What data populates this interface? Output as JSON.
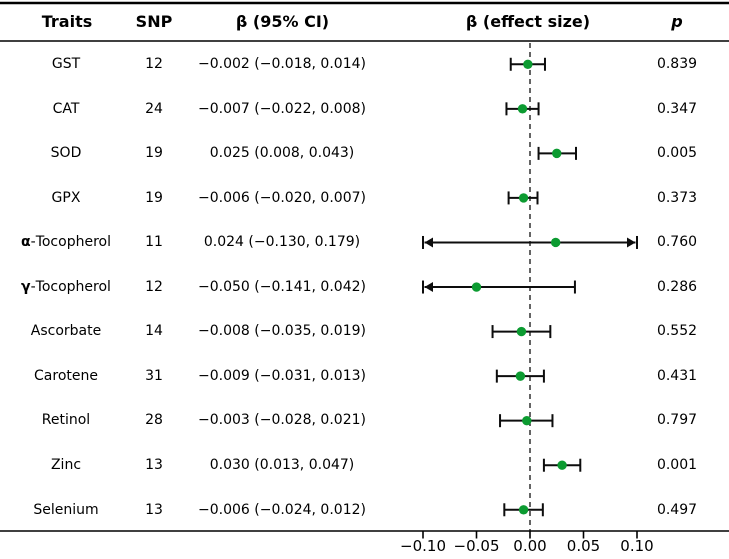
{
  "figure": {
    "headers": {
      "traits": "Traits",
      "snp": "SNP",
      "beta_ci": "β (95% CI)",
      "effect": "β (effect size)",
      "p": "p"
    },
    "colors": {
      "marker": "#0c9b31",
      "line": "#0d0d0d",
      "dashed_line": "#222222",
      "rule": "#000000"
    }
  },
  "chart_data": {
    "type": "scatter",
    "subtype": "forest-plot",
    "title": "",
    "xlabel": "β (effect size)",
    "xlim": [
      -0.1,
      0.1
    ],
    "x_ticks": [
      -0.1,
      -0.05,
      0.0,
      0.05,
      0.1
    ],
    "x_tick_labels": [
      "−0.10",
      "−0.05",
      "0.00",
      "0.05",
      "0.10"
    ],
    "reference_line_x": 0,
    "grid": false,
    "rows": [
      {
        "trait": "GST",
        "snp": 12,
        "beta": -0.002,
        "ci_low": -0.018,
        "ci_high": 0.014,
        "beta_ci_label": "−0.002 (−0.018, 0.014)",
        "p_label": "0.839"
      },
      {
        "trait": "CAT",
        "snp": 24,
        "beta": -0.007,
        "ci_low": -0.022,
        "ci_high": 0.008,
        "beta_ci_label": "−0.007 (−0.022, 0.008)",
        "p_label": "0.347"
      },
      {
        "trait": "SOD",
        "snp": 19,
        "beta": 0.025,
        "ci_low": 0.008,
        "ci_high": 0.043,
        "beta_ci_label": "0.025 (0.008, 0.043)",
        "p_label": "0.005"
      },
      {
        "trait": "GPX",
        "snp": 19,
        "beta": -0.006,
        "ci_low": -0.02,
        "ci_high": 0.007,
        "beta_ci_label": "−0.006 (−0.020, 0.007)",
        "p_label": "0.373"
      },
      {
        "trait": "α-Tocopherol",
        "snp": 11,
        "beta": 0.024,
        "ci_low": -0.13,
        "ci_high": 0.179,
        "beta_ci_label": "0.024 (−0.130, 0.179)",
        "p_label": "0.760"
      },
      {
        "trait": "γ-Tocopherol",
        "snp": 12,
        "beta": -0.05,
        "ci_low": -0.141,
        "ci_high": 0.042,
        "beta_ci_label": "−0.050 (−0.141, 0.042)",
        "p_label": "0.286"
      },
      {
        "trait": "Ascorbate",
        "snp": 14,
        "beta": -0.008,
        "ci_low": -0.035,
        "ci_high": 0.019,
        "beta_ci_label": "−0.008 (−0.035, 0.019)",
        "p_label": "0.552"
      },
      {
        "trait": "Carotene",
        "snp": 31,
        "beta": -0.009,
        "ci_low": -0.031,
        "ci_high": 0.013,
        "beta_ci_label": "−0.009 (−0.031, 0.013)",
        "p_label": "0.431"
      },
      {
        "trait": "Retinol",
        "snp": 28,
        "beta": -0.003,
        "ci_low": -0.028,
        "ci_high": 0.021,
        "beta_ci_label": "−0.003 (−0.028, 0.021)",
        "p_label": "0.797"
      },
      {
        "trait": "Zinc",
        "snp": 13,
        "beta": 0.03,
        "ci_low": 0.013,
        "ci_high": 0.047,
        "beta_ci_label": "0.030 (0.013, 0.047)",
        "p_label": "0.001"
      },
      {
        "trait": "Selenium",
        "snp": 13,
        "beta": -0.006,
        "ci_low": -0.024,
        "ci_high": 0.012,
        "beta_ci_label": "−0.006 (−0.024, 0.012)",
        "p_label": "0.497"
      }
    ]
  }
}
